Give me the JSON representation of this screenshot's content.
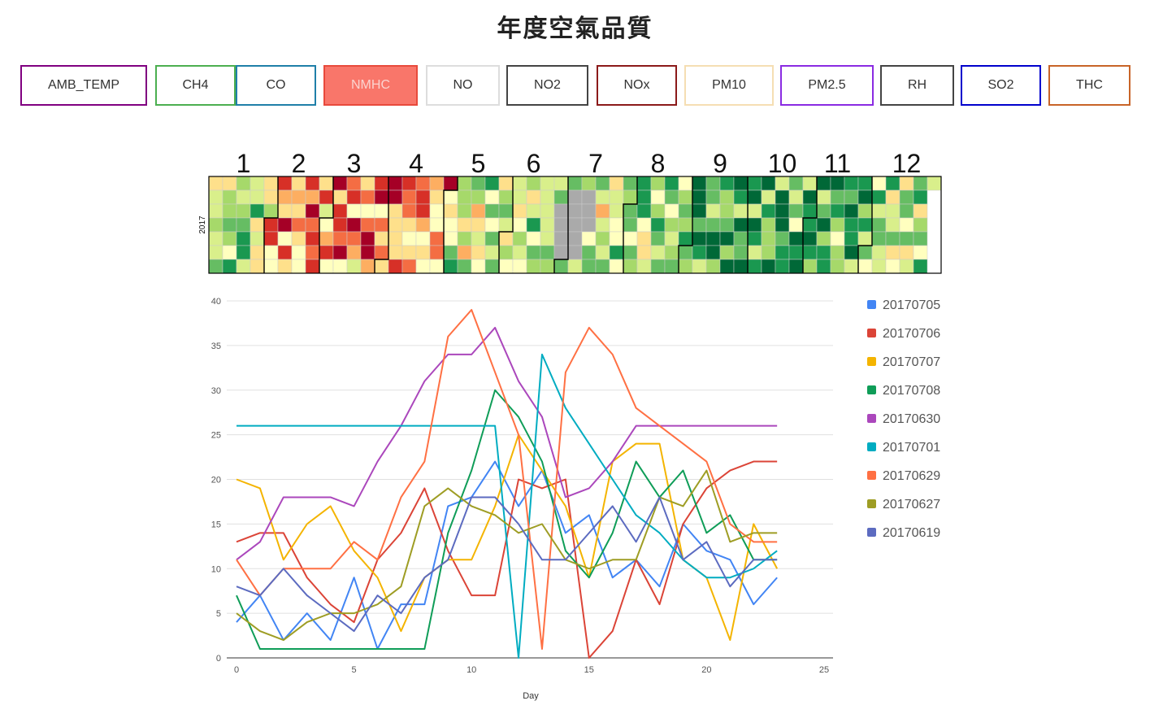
{
  "page": {
    "title": "年度空氣品質"
  },
  "pollutant_buttons": [
    {
      "label": "AMB_TEMP",
      "border": "#800080"
    },
    {
      "label": "CH4",
      "border": "#4caf50"
    },
    {
      "label": "CO",
      "border": "#1f7fa8"
    },
    {
      "label": "NMHC",
      "border": "#e84a3c",
      "fill": "#f9766a",
      "active": true
    },
    {
      "label": "NO",
      "border": "#dddddd"
    },
    {
      "label": "NO2",
      "border": "#444444"
    },
    {
      "label": "NOx",
      "border": "#8b1a1a"
    },
    {
      "label": "PM10",
      "border": "#f5deb3"
    },
    {
      "label": "PM2.5",
      "border": "#8a2be2"
    },
    {
      "label": "RH",
      "border": "#444444"
    },
    {
      "label": "SO2",
      "border": "#0000cc"
    },
    {
      "label": "THC",
      "border": "#c86428"
    }
  ],
  "calendar": {
    "year_label": "2017",
    "month_labels": [
      "1",
      "2",
      "3",
      "4",
      "5",
      "6",
      "7",
      "8",
      "9",
      "10",
      "11",
      "12"
    ],
    "palette": [
      "#006837",
      "#1a9850",
      "#66bd63",
      "#a6d96a",
      "#d9ef8b",
      "#ffffbf",
      "#fee08b",
      "#fdae61",
      "#f46d43",
      "#d73027",
      "#a50026"
    ],
    "missing_color": "#aaaaaa"
  },
  "chart_data": {
    "type": "line",
    "title": "",
    "xlabel": "Day",
    "ylabel": "",
    "xlim": [
      0,
      25
    ],
    "ylim": [
      0,
      40
    ],
    "xticks": [
      0,
      5,
      10,
      15,
      20,
      25
    ],
    "yticks": [
      0,
      5,
      10,
      15,
      20,
      25,
      30,
      35,
      40
    ],
    "grid": true,
    "legend": "right",
    "x": [
      0,
      1,
      2,
      3,
      4,
      5,
      6,
      7,
      8,
      9,
      10,
      11,
      12,
      13,
      14,
      15,
      16,
      17,
      18,
      19,
      20,
      21,
      22,
      23
    ],
    "series": [
      {
        "name": "20170705",
        "color": "#4285f4",
        "values": [
          4,
          7,
          2,
          5,
          2,
          9,
          1,
          6,
          6,
          17,
          18,
          22,
          17,
          21,
          14,
          16,
          9,
          11,
          8,
          15,
          12,
          11,
          6,
          9
        ]
      },
      {
        "name": "20170706",
        "color": "#db4437",
        "values": [
          13,
          14,
          14,
          9,
          6,
          4,
          11,
          14,
          19,
          12,
          7,
          7,
          20,
          19,
          20,
          0,
          3,
          11,
          6,
          15,
          19,
          21,
          22,
          22
        ]
      },
      {
        "name": "20170707",
        "color": "#f4b400",
        "values": [
          20,
          19,
          11,
          15,
          17,
          12,
          9,
          3,
          9,
          11,
          11,
          17,
          25,
          21,
          17,
          9,
          22,
          24,
          24,
          11,
          9,
          2,
          15,
          10
        ]
      },
      {
        "name": "20170708",
        "color": "#0f9d58",
        "values": [
          7,
          1,
          1,
          1,
          1,
          1,
          1,
          1,
          1,
          14,
          21,
          30,
          27,
          22,
          12,
          9,
          14,
          22,
          18,
          21,
          14,
          16,
          11,
          11
        ]
      },
      {
        "name": "20170630",
        "color": "#ab47bc",
        "values": [
          11,
          13,
          18,
          18,
          18,
          17,
          22,
          26,
          31,
          34,
          34,
          37,
          31,
          27,
          18,
          19,
          22,
          26,
          26,
          26,
          26,
          26,
          26,
          26
        ]
      },
      {
        "name": "20170701",
        "color": "#00acc1",
        "values": [
          26,
          26,
          26,
          26,
          26,
          26,
          26,
          26,
          26,
          26,
          26,
          26,
          0,
          34,
          28,
          24,
          20,
          16,
          14,
          11,
          9,
          9,
          10,
          12
        ]
      },
      {
        "name": "20170629",
        "color": "#ff7043",
        "values": [
          11,
          7,
          10,
          10,
          10,
          13,
          11,
          18,
          22,
          36,
          39,
          32,
          25,
          1,
          32,
          37,
          34,
          28,
          26,
          24,
          22,
          15,
          13,
          13
        ]
      },
      {
        "name": "20170627",
        "color": "#9e9d24",
        "values": [
          5,
          3,
          2,
          4,
          5,
          5,
          6,
          8,
          17,
          19,
          17,
          16,
          14,
          15,
          11,
          10,
          11,
          11,
          18,
          17,
          21,
          13,
          14,
          14
        ]
      },
      {
        "name": "20170619",
        "color": "#5c6bc0",
        "values": [
          8,
          7,
          10,
          7,
          5,
          3,
          7,
          5,
          9,
          11,
          18,
          18,
          15,
          11,
          11,
          14,
          17,
          13,
          18,
          11,
          13,
          8,
          11,
          11
        ]
      }
    ]
  }
}
